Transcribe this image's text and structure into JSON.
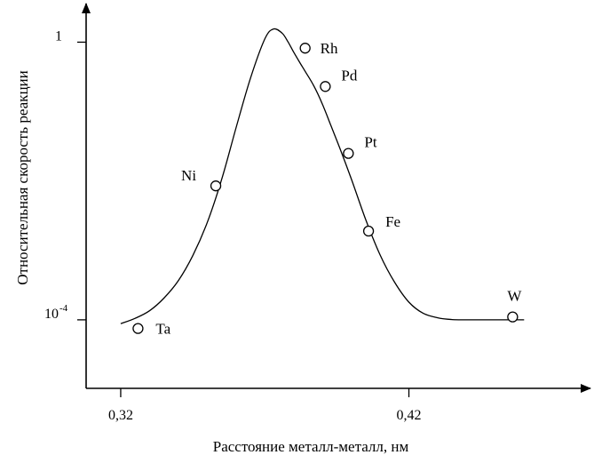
{
  "chart_data": {
    "type": "scatter",
    "title": "",
    "xlabel": "Расстояние металл-металл, нм",
    "ylabel": "Относительная скорость реакции",
    "x_ticks": [
      {
        "value": 0.32,
        "label": "0,32"
      },
      {
        "value": 0.42,
        "label": "0,42"
      }
    ],
    "y_ticks": [
      {
        "value": 1,
        "label": "1",
        "base": "",
        "exponent": ""
      },
      {
        "value": 0.0001,
        "label": "",
        "base": "10",
        "exponent": "-4"
      }
    ],
    "y_scale": "log",
    "xlim": [
      0.308,
      0.483
    ],
    "ylim": [
      1.03e-05,
      3.6
    ],
    "grid": false,
    "legend": "none",
    "points": [
      {
        "label": "Ta",
        "x": 0.326,
        "y": 7.5e-05
      },
      {
        "label": "Ni",
        "x": 0.353,
        "y": 0.0085
      },
      {
        "label": "Rh",
        "x": 0.384,
        "y": 0.82
      },
      {
        "label": "Pd",
        "x": 0.391,
        "y": 0.23
      },
      {
        "label": "Pt",
        "x": 0.399,
        "y": 0.025
      },
      {
        "label": "Fe",
        "x": 0.406,
        "y": 0.0019
      },
      {
        "label": "W",
        "x": 0.456,
        "y": 0.00011
      }
    ],
    "curve": {
      "x": [
        0.32,
        0.325,
        0.33,
        0.335,
        0.34,
        0.345,
        0.35,
        0.355,
        0.36,
        0.365,
        0.37,
        0.373,
        0.376,
        0.378,
        0.38,
        0.382,
        0.384,
        0.387,
        0.39,
        0.393,
        0.396,
        0.4,
        0.405,
        0.41,
        0.415,
        0.42,
        0.425,
        0.43,
        0.435,
        0.44,
        0.445,
        0.45,
        0.455,
        0.46
      ],
      "y": [
        8.8e-05,
        0.000105,
        0.000135,
        0.000205,
        0.000367,
        0.00084,
        0.0025,
        0.0104,
        0.058,
        0.3,
        1.11,
        1.55,
        1.35,
        1.02,
        0.72,
        0.52,
        0.38,
        0.235,
        0.128,
        0.062,
        0.03,
        0.0108,
        0.0028,
        0.00086,
        0.00035,
        0.00018,
        0.000124,
        0.000107,
        0.000101,
        0.0001,
        0.0001,
        0.0001,
        0.0001,
        0.0001
      ]
    }
  }
}
